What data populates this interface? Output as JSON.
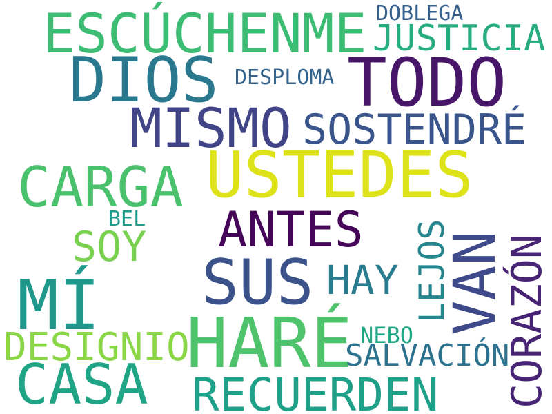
{
  "words": [
    {
      "text": "ESCÚCHENME",
      "color": "#3dbc74"
    },
    {
      "text": "DOBLEGA",
      "color": "#355f8d"
    },
    {
      "text": "JUSTICIA",
      "color": "#27ad81"
    },
    {
      "text": "DIOS",
      "color": "#2a788e"
    },
    {
      "text": "TODO",
      "color": "#481668"
    },
    {
      "text": "DESPLOMA",
      "color": "#33638d"
    },
    {
      "text": "MISMO",
      "color": "#414487"
    },
    {
      "text": "SOSTENDRÉ",
      "color": "#39558c"
    },
    {
      "text": "USTEDES",
      "color": "#dde318"
    },
    {
      "text": "CARGA",
      "color": "#4ac16d"
    },
    {
      "text": "ANTES",
      "color": "#450559"
    },
    {
      "text": "BEL",
      "color": "#1f9a8a"
    },
    {
      "text": "SOY",
      "color": "#7ad151"
    },
    {
      "text": "SUS",
      "color": "#3b528b"
    },
    {
      "text": "HAY",
      "color": "#287c8e"
    },
    {
      "text": "LEJOS",
      "color": "#25858e"
    },
    {
      "text": "VAN",
      "color": "#3e4a89"
    },
    {
      "text": "CORAZÓN",
      "color": "#482475"
    },
    {
      "text": "MÍ",
      "color": "#1f988b"
    },
    {
      "text": "HARÉ",
      "color": "#4ec36b"
    },
    {
      "text": "DESIGNIO",
      "color": "#8bd646"
    },
    {
      "text": "NEBO",
      "color": "#21a685"
    },
    {
      "text": "SALVACIÓN",
      "color": "#2c728e"
    },
    {
      "text": "CASA",
      "color": "#20a486"
    },
    {
      "text": "RECUERDEN",
      "color": "#1fa088"
    }
  ]
}
